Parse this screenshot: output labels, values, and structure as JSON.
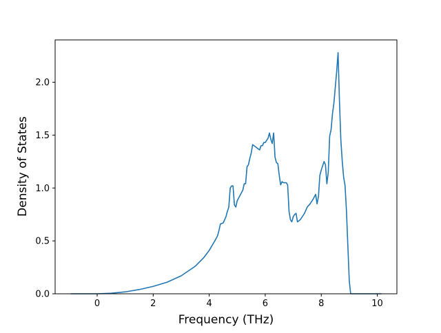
{
  "chart_data": {
    "type": "line",
    "title": "",
    "xlabel": "Frequency (THz)",
    "ylabel": "Density of States",
    "xlim": [
      -1.5,
      10.7
    ],
    "ylim": [
      0.0,
      2.4
    ],
    "xticks": [
      0,
      2,
      4,
      6,
      8,
      10
    ],
    "xtick_labels": [
      "0",
      "2",
      "4",
      "6",
      "8",
      "10"
    ],
    "yticks": [
      0.0,
      0.5,
      1.0,
      1.5,
      2.0
    ],
    "ytick_labels": [
      "0.0",
      "0.5",
      "1.0",
      "1.5",
      "2.0"
    ],
    "grid": false,
    "legend": "none",
    "series": [
      {
        "color": "#1f77b4",
        "x": [
          -0.95,
          -0.5,
          0.0,
          0.5,
          1.0,
          1.5,
          2.0,
          2.5,
          3.0,
          3.5,
          3.8,
          4.0,
          4.2,
          4.3,
          4.35,
          4.4,
          4.5,
          4.55,
          4.6,
          4.65,
          4.7,
          4.75,
          4.8,
          4.85,
          4.9,
          4.95,
          5.0,
          5.1,
          5.2,
          5.25,
          5.3,
          5.35,
          5.4,
          5.45,
          5.5,
          5.55,
          5.6,
          5.65,
          5.7,
          5.8,
          5.85,
          5.9,
          5.95,
          6.0,
          6.05,
          6.1,
          6.15,
          6.2,
          6.25,
          6.3,
          6.35,
          6.4,
          6.45,
          6.5,
          6.55,
          6.6,
          6.65,
          6.7,
          6.75,
          6.8,
          6.85,
          6.9,
          6.95,
          7.0,
          7.05,
          7.1,
          7.15,
          7.2,
          7.25,
          7.3,
          7.4,
          7.5,
          7.6,
          7.7,
          7.8,
          7.85,
          7.9,
          7.95,
          8.0,
          8.05,
          8.1,
          8.15,
          8.2,
          8.25,
          8.3,
          8.35,
          8.4,
          8.45,
          8.5,
          8.55,
          8.6,
          8.65,
          8.7,
          8.75,
          8.8,
          8.85,
          8.9,
          8.95,
          9.0,
          9.05,
          9.1,
          9.15,
          9.2,
          9.25,
          9.5,
          9.8,
          10.15
        ],
        "y": [
          0.0,
          0.0,
          0.0,
          0.005,
          0.018,
          0.04,
          0.07,
          0.11,
          0.17,
          0.26,
          0.34,
          0.41,
          0.5,
          0.55,
          0.6,
          0.66,
          0.67,
          0.7,
          0.73,
          0.78,
          0.82,
          1.0,
          1.02,
          1.02,
          0.84,
          0.82,
          0.88,
          0.93,
          0.98,
          1.04,
          1.04,
          1.2,
          1.22,
          1.28,
          1.33,
          1.41,
          1.4,
          1.39,
          1.38,
          1.36,
          1.4,
          1.4,
          1.43,
          1.43,
          1.45,
          1.47,
          1.52,
          1.46,
          1.42,
          1.52,
          1.29,
          1.24,
          1.23,
          1.12,
          1.03,
          1.06,
          1.05,
          1.05,
          1.05,
          1.03,
          0.78,
          0.7,
          0.68,
          0.73,
          0.75,
          0.76,
          0.68,
          0.69,
          0.7,
          0.72,
          0.76,
          0.82,
          0.85,
          0.89,
          0.94,
          0.85,
          0.92,
          1.12,
          1.17,
          1.21,
          1.25,
          1.22,
          1.04,
          1.15,
          1.49,
          1.55,
          1.7,
          1.8,
          1.95,
          2.1,
          2.28,
          1.82,
          1.45,
          1.25,
          1.1,
          1.02,
          0.78,
          0.45,
          0.12,
          0.0,
          0.0,
          0.0,
          0.0,
          0.0,
          0.0,
          0.0,
          0.0
        ]
      }
    ]
  }
}
